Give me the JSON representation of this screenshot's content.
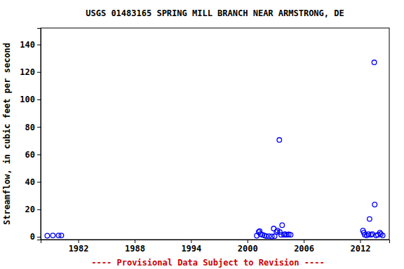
{
  "chart_data": {
    "type": "scatter",
    "title": "USGS 01483165 SPRING MILL BRANCH NEAR ARMSTRONG, DE",
    "y_label": "Streamflow, in cubic feet per second",
    "caption": "---- Provisional Data Subject to Revision ----",
    "color": "#0000ff",
    "marker": "circle-open",
    "grid": false,
    "x": [
      1978.7,
      1979.3,
      1979.9,
      1980.2,
      2001.0,
      2001.2,
      2001.3,
      2001.4,
      2001.6,
      2001.8,
      2002.0,
      2002.3,
      2002.6,
      2002.8,
      2002.9,
      2003.1,
      2003.2,
      2003.4,
      2003.45,
      2003.6,
      2003.7,
      2003.9,
      2004.0,
      2004.2,
      2004.4,
      2004.6,
      2012.3,
      2012.4,
      2012.5,
      2012.7,
      2012.9,
      2013.0,
      2013.15,
      2013.3,
      2013.5,
      2013.55,
      2013.7,
      2013.9,
      2014.1,
      2014.2,
      2014.4
    ],
    "values": [
      0.8,
      1.0,
      1.0,
      1.0,
      0.8,
      3.5,
      4.2,
      2.0,
      1.5,
      1.0,
      0.5,
      0.5,
      0.3,
      6.0,
      0.5,
      3.5,
      4.5,
      70.5,
      3.5,
      1.5,
      8.5,
      1.5,
      2.0,
      1.5,
      1.8,
      1.5,
      4.5,
      3.0,
      1.5,
      1.0,
      2.0,
      13.0,
      1.5,
      2.0,
      127,
      23.5,
      1.0,
      1.5,
      3.0,
      2.0,
      1.0
    ],
    "xlim": [
      1978.0,
      2015.1
    ],
    "xticks": [
      1982,
      1988,
      1994,
      2000,
      2006,
      2012
    ],
    "ylim": [
      -2,
      152
    ],
    "yticks": [
      0,
      20,
      40,
      60,
      80,
      100,
      120,
      140
    ]
  }
}
